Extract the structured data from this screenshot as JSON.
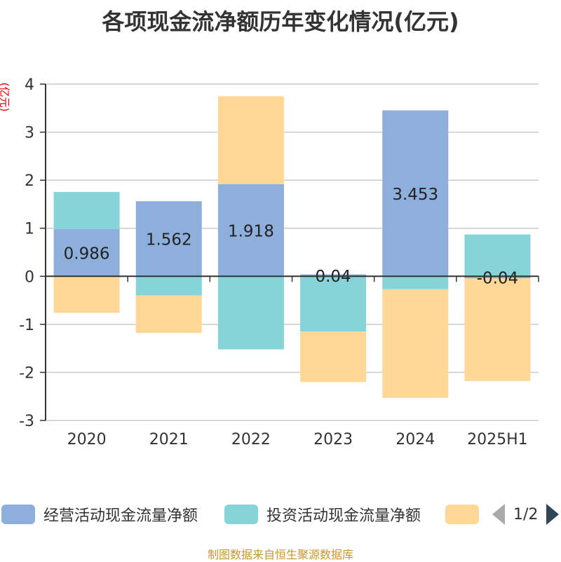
{
  "title": "各项现金流净额历年变化情况(亿元)",
  "unit_label": "(亿元)",
  "source": "制图数据来自恒生聚源数据库",
  "pager": {
    "text": "1/2"
  },
  "colors": {
    "operating": "#8eaedb",
    "investing": "#86d4d8",
    "financing": "#ffd898",
    "axis": "#333333",
    "grid": "#cccccc"
  },
  "chart_data": {
    "type": "bar",
    "stacked": true,
    "categories": [
      "2020",
      "2021",
      "2022",
      "2023",
      "2024",
      "2025H1"
    ],
    "ylim": [
      -3,
      4
    ],
    "yticks": [
      -3,
      -2,
      -1,
      0,
      1,
      2,
      3,
      4
    ],
    "grid": true,
    "legend_position": "bottom",
    "series": [
      {
        "name": "经营活动现金流量净额",
        "color": "#8eaedb",
        "values": [
          0.986,
          1.562,
          1.918,
          0.04,
          3.453,
          -0.04
        ],
        "labels": [
          "0.986",
          "1.562",
          "1.918",
          "0.04",
          "3.453",
          "-0.04"
        ]
      },
      {
        "name": "投资活动现金流量净额",
        "color": "#86d4d8",
        "values": [
          0.77,
          -0.4,
          -1.52,
          -1.15,
          -0.27,
          0.87
        ]
      },
      {
        "name": "",
        "color": "#ffd898",
        "values": [
          -0.76,
          -0.78,
          1.83,
          -1.05,
          -2.26,
          -2.14
        ]
      }
    ]
  }
}
